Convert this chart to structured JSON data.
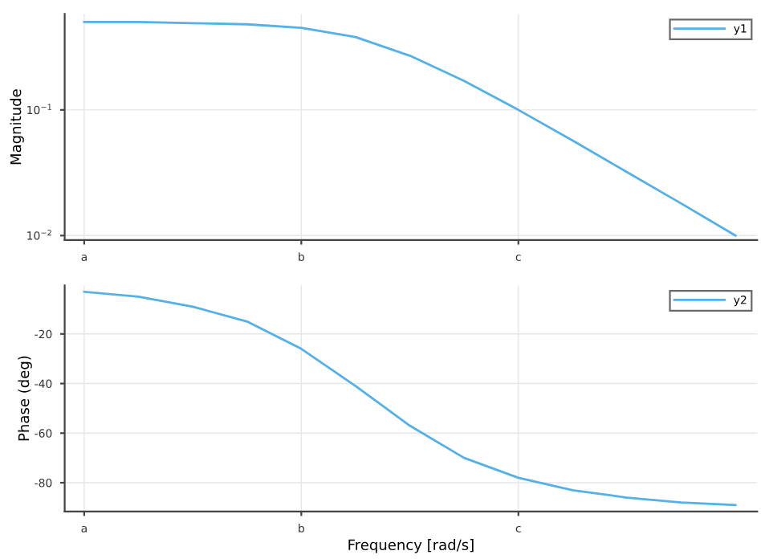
{
  "chart_data": [
    {
      "type": "line",
      "ylabel": "Magnitude",
      "log": "y",
      "grid": true,
      "legend": "top right",
      "marker": "none",
      "line_style": "solid",
      "categories": [
        "a",
        null,
        null,
        null,
        "b",
        null,
        null,
        null,
        "c",
        null,
        null,
        null,
        null
      ],
      "ylim": [
        0.0092,
        0.58
      ],
      "yticks": [
        {
          "value": 0.01,
          "label": "10$^{−2}$"
        },
        {
          "value": 0.1,
          "label": "10$^{−1}$"
        }
      ],
      "series": [
        {
          "name": "y1",
          "color": "#55b0e6",
          "values": [
            0.5,
            0.5,
            0.49,
            0.48,
            0.45,
            0.38,
            0.27,
            0.17,
            0.1,
            0.057,
            0.032,
            0.018,
            0.01
          ]
        }
      ]
    },
    {
      "type": "line",
      "ylabel": "Phase (deg)",
      "xlabel": "Frequency [rad/s]",
      "grid": true,
      "legend": "top right",
      "marker": "none",
      "line_style": "solid",
      "categories": [
        "a",
        null,
        null,
        null,
        "b",
        null,
        null,
        null,
        "c",
        null,
        null,
        null,
        null
      ],
      "ylim": [
        -91.6,
        -0.4
      ],
      "yticks": [
        -80,
        -60,
        -40,
        -20
      ],
      "series": [
        {
          "name": "y2",
          "color": "#55b0e6",
          "values": [
            -3,
            -5,
            -9,
            -15,
            -26,
            -41,
            -57,
            -70,
            -78,
            -83,
            -86,
            -88,
            -89
          ]
        }
      ]
    }
  ]
}
